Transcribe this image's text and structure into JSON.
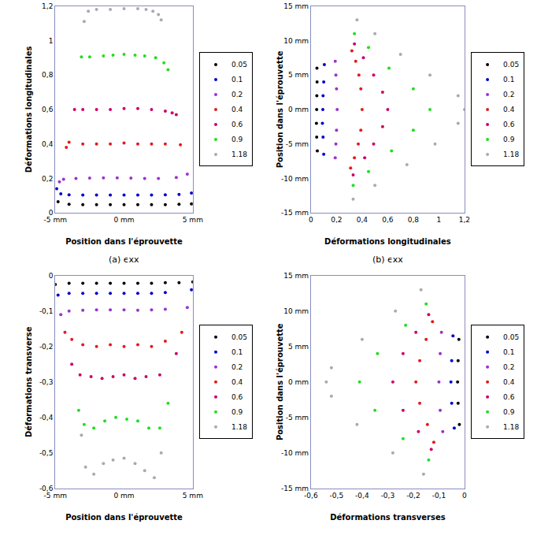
{
  "chart_data": [
    {
      "type": "scatter",
      "caption": "(a) ϵxx",
      "x_label": "Position dans l'éprouvette",
      "y_label": "Déformations longitudinales",
      "xlim": [
        -5,
        5
      ],
      "ylim": [
        0,
        1.2
      ],
      "xticks": [
        {
          "value": -5,
          "label": "-5 mm"
        },
        {
          "value": 0,
          "label": "0 mm"
        },
        {
          "value": 5,
          "label": "5 mm"
        }
      ],
      "yticks": [
        0,
        {
          "value": 0.2,
          "label": "0,2"
        },
        {
          "value": 0.4,
          "label": "0,4"
        },
        {
          "value": 0.6,
          "label": "0,6"
        },
        {
          "value": 0.8,
          "label": "0,8"
        },
        1,
        {
          "value": 1.2,
          "label": "1,2"
        }
      ],
      "grid": false,
      "legend": "right",
      "marker": "circle",
      "series": [
        {
          "name": "0.05",
          "color": "#000000",
          "x": [
            -4.8,
            -4,
            -3,
            -2,
            -1,
            0,
            1,
            2,
            3,
            4,
            4.9
          ],
          "values": [
            0.065,
            0.05,
            0.048,
            0.048,
            0.047,
            0.047,
            0.047,
            0.048,
            0.048,
            0.05,
            0.052
          ]
        },
        {
          "name": "0.1",
          "color": "#0000cc",
          "x": [
            -4.9,
            -4.6,
            -4,
            -3,
            -2,
            -1,
            0,
            1,
            2,
            3,
            4,
            4.9
          ],
          "values": [
            0.14,
            0.11,
            0.105,
            0.104,
            0.103,
            0.103,
            0.103,
            0.103,
            0.104,
            0.105,
            0.107,
            0.115
          ]
        },
        {
          "name": "0.2",
          "color": "#9933cc",
          "x": [
            -4.7,
            -4.4,
            -3.5,
            -2.5,
            -1.5,
            -0.5,
            0.5,
            1.5,
            2.5,
            3.8,
            4.6
          ],
          "values": [
            0.18,
            0.195,
            0.2,
            0.202,
            0.203,
            0.203,
            0.202,
            0.2,
            0.2,
            0.205,
            0.225
          ]
        },
        {
          "name": "0.4",
          "color": "#e31a1c",
          "x": [
            -4.2,
            -4,
            -3,
            -2,
            -1,
            0,
            1,
            2,
            3,
            4.1
          ],
          "values": [
            0.38,
            0.41,
            0.4,
            0.4,
            0.4,
            0.405,
            0.4,
            0.4,
            0.4,
            0.395
          ]
        },
        {
          "name": "0.6",
          "color": "#cc0066",
          "x": [
            -3.6,
            -3,
            -2,
            -1,
            0,
            1,
            2,
            3,
            3.5,
            3.8
          ],
          "values": [
            0.6,
            0.6,
            0.6,
            0.6,
            0.605,
            0.605,
            0.6,
            0.59,
            0.58,
            0.57
          ]
        },
        {
          "name": "0.9",
          "color": "#22dd22",
          "x": [
            -3.1,
            -2.5,
            -1.5,
            -0.8,
            0,
            0.8,
            1.5,
            2.3,
            2.9,
            3.2
          ],
          "values": [
            0.905,
            0.905,
            0.91,
            0.915,
            0.92,
            0.915,
            0.91,
            0.9,
            0.87,
            0.83
          ]
        },
        {
          "name": "1.18",
          "color": "#aaaaaa",
          "x": [
            -2.9,
            -2.6,
            -2,
            -1,
            0,
            1,
            1.6,
            2.1,
            2.5,
            2.7
          ],
          "values": [
            1.11,
            1.17,
            1.18,
            1.18,
            1.185,
            1.185,
            1.18,
            1.17,
            1.15,
            1.12
          ]
        }
      ]
    },
    {
      "type": "scatter",
      "caption": "(b) ϵxx",
      "x_label": "Déformations longitudinales",
      "y_label": "Position dans l'éprouvette",
      "xlim": [
        0,
        1.2
      ],
      "ylim": [
        -15,
        15
      ],
      "xticks": [
        0,
        {
          "value": 0.2,
          "label": "0,2"
        },
        {
          "value": 0.4,
          "label": "0,4"
        },
        {
          "value": 0.6,
          "label": "0,6"
        },
        {
          "value": 0.8,
          "label": "0,8"
        },
        1,
        {
          "value": 1.2,
          "label": "1,2"
        }
      ],
      "yticks": [
        {
          "value": -15,
          "label": "-15 mm"
        },
        {
          "value": -10,
          "label": "-10 mm"
        },
        {
          "value": -5,
          "label": "-5 mm"
        },
        {
          "value": 0,
          "label": "0 mm"
        },
        {
          "value": 5,
          "label": "5 mm"
        },
        {
          "value": 10,
          "label": "10 mm"
        },
        {
          "value": 15,
          "label": "15 mm"
        }
      ],
      "grid": false,
      "legend": "right",
      "marker": "circle",
      "series": [
        {
          "name": "0.05",
          "color": "#000000",
          "x": [
            0.05,
            0.045,
            0.043,
            0.045,
            0.046,
            0.048,
            0.047
          ],
          "values": [
            -6,
            -4,
            -2,
            0,
            2,
            4,
            6
          ]
        },
        {
          "name": "0.1",
          "color": "#0000cc",
          "x": [
            0.1,
            0.095,
            0.09,
            0.093,
            0.095,
            0.1,
            0.105
          ],
          "values": [
            -6.5,
            -4,
            -2,
            0,
            2,
            4,
            6.5
          ]
        },
        {
          "name": "0.2",
          "color": "#9933cc",
          "x": [
            0.19,
            0.195,
            0.2,
            0.205,
            0.2,
            0.195,
            0.19
          ],
          "values": [
            -7,
            -5,
            -3,
            0,
            3,
            5,
            7
          ]
        },
        {
          "name": "0.4",
          "color": "#e31a1c",
          "x": [
            0.31,
            0.34,
            0.37,
            0.39,
            0.4,
            0.39,
            0.375,
            0.35,
            0.32
          ],
          "values": [
            -8.5,
            -7,
            -5,
            -3,
            0,
            3,
            5,
            7,
            8.5
          ]
        },
        {
          "name": "0.6",
          "color": "#cc0066",
          "x": [
            0.33,
            0.42,
            0.49,
            0.56,
            0.6,
            0.56,
            0.49,
            0.41,
            0.34
          ],
          "values": [
            -9.5,
            -7,
            -5,
            -2.5,
            0,
            2.5,
            5,
            7.5,
            9.5
          ]
        },
        {
          "name": "0.9",
          "color": "#22dd22",
          "x": [
            0.33,
            0.45,
            0.63,
            0.8,
            0.93,
            0.8,
            0.61,
            0.45,
            0.34
          ],
          "values": [
            -11,
            -9,
            -6,
            -3,
            0,
            3,
            6,
            9,
            11
          ]
        },
        {
          "name": "1.18",
          "color": "#aaaaaa",
          "x": [
            0.33,
            0.5,
            0.75,
            0.97,
            1.15,
            1.2,
            1.15,
            0.93,
            0.7,
            0.5,
            0.36
          ],
          "values": [
            -13,
            -11,
            -8,
            -5,
            -2,
            0,
            2,
            5,
            8,
            11,
            13
          ]
        }
      ]
    },
    {
      "type": "scatter",
      "x_label": "Position dans l'éprouvette",
      "y_label": "Déformations transverse",
      "xlim": [
        -5,
        5
      ],
      "ylim": [
        -0.6,
        0
      ],
      "xticks": [
        {
          "value": -5,
          "label": "-5 mm"
        },
        {
          "value": 0,
          "label": "0 mm"
        },
        {
          "value": 5,
          "label": "5 mm"
        }
      ],
      "yticks": [
        {
          "value": -0.6,
          "label": "-0,6"
        },
        {
          "value": -0.5,
          "label": "-0,5"
        },
        {
          "value": -0.4,
          "label": "-0,4"
        },
        {
          "value": -0.3,
          "label": "-0,3"
        },
        {
          "value": -0.2,
          "label": "-0,2"
        },
        {
          "value": -0.1,
          "label": "-0,1"
        },
        0
      ],
      "grid": false,
      "legend": "right",
      "marker": "circle",
      "series": [
        {
          "name": "0.05",
          "color": "#000000",
          "x": [
            -5,
            -4,
            -3,
            -2,
            -1,
            0,
            1,
            2,
            3,
            4,
            5
          ],
          "values": [
            -0.025,
            -0.022,
            -0.022,
            -0.022,
            -0.022,
            -0.022,
            -0.022,
            -0.022,
            -0.02,
            -0.02,
            -0.018
          ]
        },
        {
          "name": "0.1",
          "color": "#0000cc",
          "x": [
            -4.8,
            -4,
            -3,
            -2,
            -1,
            0,
            1,
            2,
            3,
            4.9
          ],
          "values": [
            -0.055,
            -0.05,
            -0.05,
            -0.05,
            -0.05,
            -0.05,
            -0.05,
            -0.05,
            -0.048,
            -0.04
          ]
        },
        {
          "name": "0.2",
          "color": "#9933cc",
          "x": [
            -4.6,
            -4,
            -3,
            -2,
            -1,
            0,
            1,
            2,
            3,
            4.6
          ],
          "values": [
            -0.11,
            -0.1,
            -0.098,
            -0.097,
            -0.097,
            -0.097,
            -0.098,
            -0.097,
            -0.095,
            -0.09
          ]
        },
        {
          "name": "0.4",
          "color": "#e31a1c",
          "x": [
            -4.3,
            -3.8,
            -3,
            -2,
            -1,
            0,
            1,
            2,
            3,
            4.2
          ],
          "values": [
            -0.16,
            -0.18,
            -0.195,
            -0.2,
            -0.195,
            -0.2,
            -0.195,
            -0.2,
            -0.185,
            -0.16
          ]
        },
        {
          "name": "0.6",
          "color": "#cc0066",
          "x": [
            -3.8,
            -3.2,
            -2.4,
            -1.6,
            -0.8,
            0,
            0.8,
            1.6,
            2.6,
            3.8
          ],
          "values": [
            -0.25,
            -0.28,
            -0.285,
            -0.29,
            -0.285,
            -0.28,
            -0.29,
            -0.285,
            -0.28,
            -0.22
          ]
        },
        {
          "name": "0.9",
          "color": "#22dd22",
          "x": [
            -3.3,
            -2.9,
            -2.2,
            -1.4,
            -0.6,
            0.2,
            1,
            1.8,
            2.6,
            3.2
          ],
          "values": [
            -0.38,
            -0.42,
            -0.43,
            -0.41,
            -0.4,
            -0.405,
            -0.41,
            -0.43,
            -0.43,
            -0.36
          ]
        },
        {
          "name": "1.18",
          "color": "#aaaaaa",
          "x": [
            -3.1,
            -2.8,
            -2.2,
            -1.5,
            -0.8,
            0,
            0.8,
            1.5,
            2.2,
            2.7
          ],
          "values": [
            -0.45,
            -0.54,
            -0.56,
            -0.53,
            -0.52,
            -0.515,
            -0.53,
            -0.55,
            -0.57,
            -0.5
          ]
        }
      ]
    },
    {
      "type": "scatter",
      "x_label": "Déformations transverses",
      "y_label": "Position dans l'éprouvette",
      "xlim": [
        -0.6,
        0
      ],
      "ylim": [
        -15,
        15
      ],
      "xticks": [
        {
          "value": -0.6,
          "label": "-0,6"
        },
        {
          "value": -0.5,
          "label": "-0,5"
        },
        {
          "value": -0.4,
          "label": "-0,4"
        },
        {
          "value": -0.3,
          "label": "-0,3"
        },
        {
          "value": -0.2,
          "label": "-0,2"
        },
        {
          "value": -0.1,
          "label": "-0,1"
        },
        0
      ],
      "yticks": [
        {
          "value": -15,
          "label": "-15 mm"
        },
        {
          "value": -10,
          "label": "-10 mm"
        },
        {
          "value": -5,
          "label": "-5 mm"
        },
        {
          "value": 0,
          "label": "0 mm"
        },
        {
          "value": 5,
          "label": "5 mm"
        },
        {
          "value": 10,
          "label": "10 mm"
        },
        {
          "value": 15,
          "label": "15 mm"
        }
      ],
      "grid": false,
      "legend": "right",
      "marker": "circle",
      "series": [
        {
          "name": "0.05",
          "color": "#000000",
          "x": [
            -0.02,
            -0.025,
            -0.027,
            -0.025,
            -0.022
          ],
          "values": [
            -6,
            -3,
            0,
            3,
            6
          ]
        },
        {
          "name": "0.1",
          "color": "#0000cc",
          "x": [
            -0.04,
            -0.05,
            -0.053,
            -0.05,
            -0.045
          ],
          "values": [
            -6.5,
            -3,
            0,
            3,
            6.5
          ]
        },
        {
          "name": "0.2",
          "color": "#9933cc",
          "x": [
            -0.085,
            -0.095,
            -0.1,
            -0.095,
            -0.09
          ],
          "values": [
            -7,
            -4,
            0,
            4,
            7
          ]
        },
        {
          "name": "0.4",
          "color": "#e31a1c",
          "x": [
            -0.12,
            -0.145,
            -0.175,
            -0.19,
            -0.175,
            -0.15,
            -0.125
          ],
          "values": [
            -8.5,
            -6,
            -3,
            0,
            3,
            6,
            8.5
          ]
        },
        {
          "name": "0.6",
          "color": "#cc0066",
          "x": [
            -0.13,
            -0.18,
            -0.24,
            -0.28,
            -0.24,
            -0.19,
            -0.14
          ],
          "values": [
            -9.5,
            -7,
            -4,
            0,
            4,
            7,
            9.5
          ]
        },
        {
          "name": "0.9",
          "color": "#22dd22",
          "x": [
            -0.14,
            -0.24,
            -0.35,
            -0.41,
            -0.34,
            -0.23,
            -0.15
          ],
          "values": [
            -11,
            -8,
            -4,
            0,
            4,
            8,
            11
          ]
        },
        {
          "name": "1.18",
          "color": "#aaaaaa",
          "x": [
            -0.16,
            -0.28,
            -0.42,
            -0.52,
            -0.54,
            -0.52,
            -0.4,
            -0.27,
            -0.17
          ],
          "values": [
            -13,
            -10,
            -6,
            -2,
            0,
            2,
            6,
            10,
            13
          ]
        }
      ]
    }
  ]
}
